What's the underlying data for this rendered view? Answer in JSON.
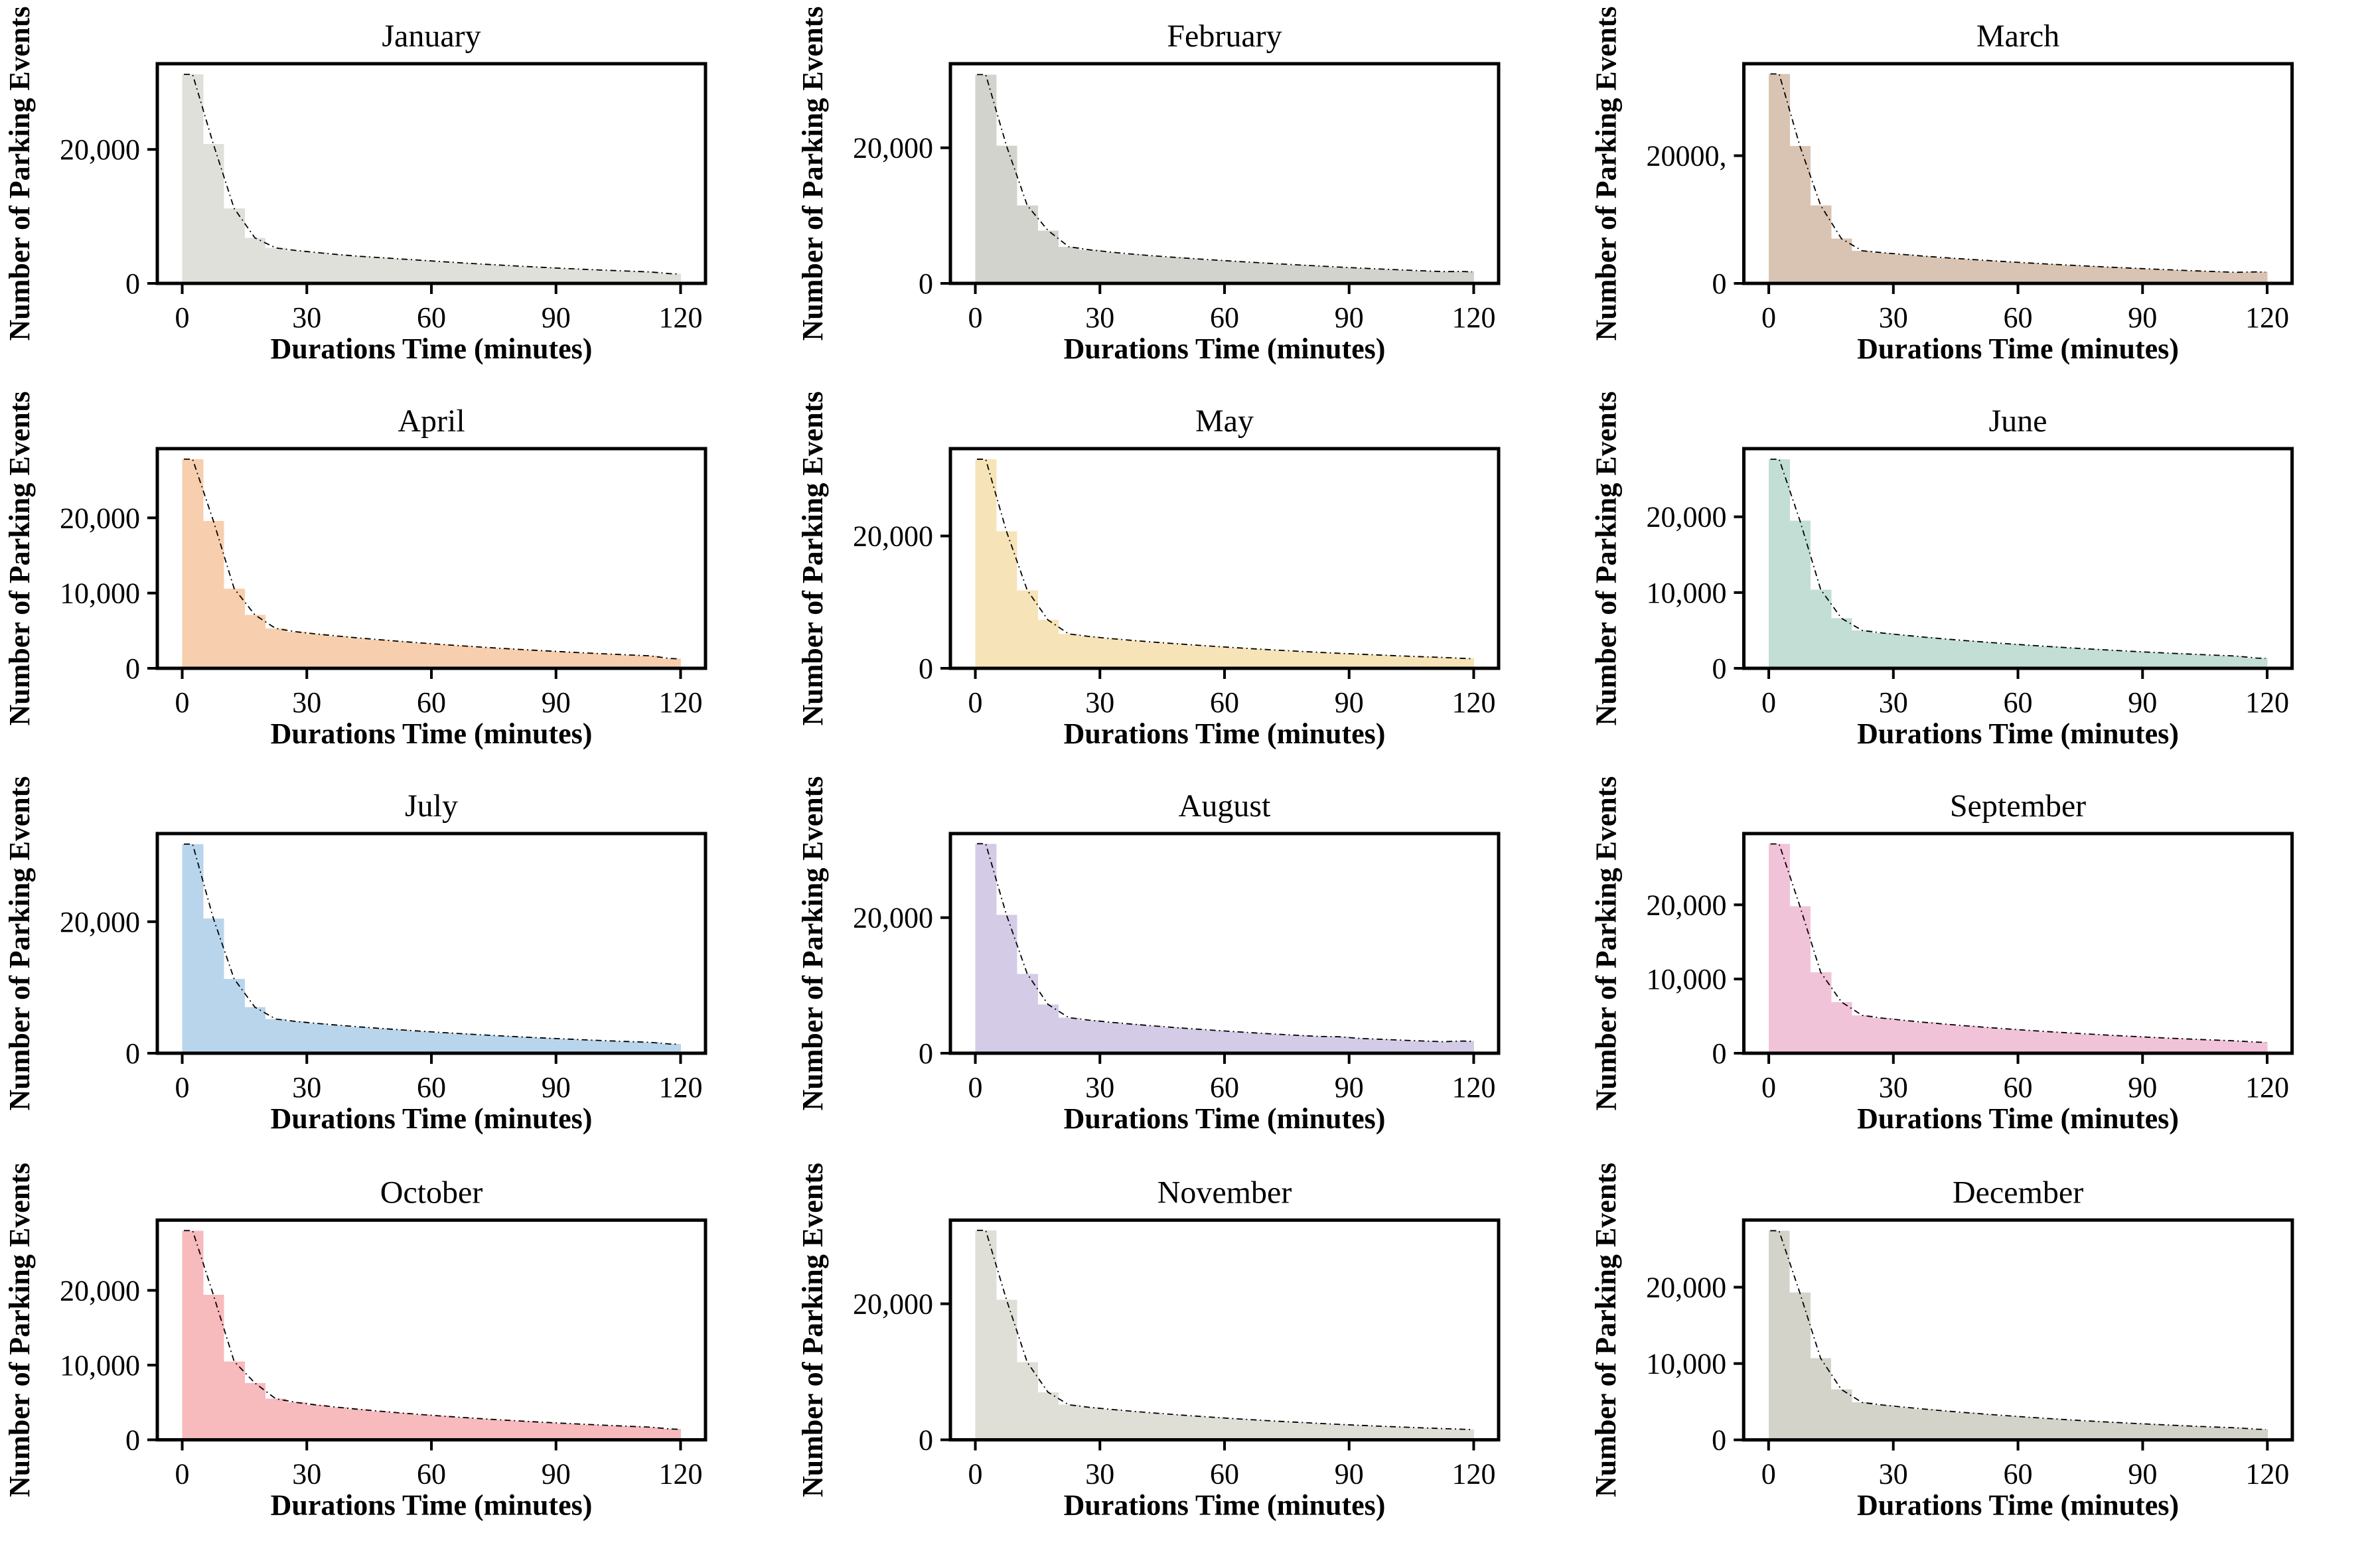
{
  "figure": {
    "ylabel": "Number of Parking Events",
    "xlabel": "Durations Time (minutes)",
    "x_ticks": [
      {
        "value": 0,
        "label": "0"
      },
      {
        "value": 30,
        "label": "30"
      },
      {
        "value": 60,
        "label": "60"
      },
      {
        "value": 90,
        "label": "90"
      },
      {
        "value": 120,
        "label": "120"
      }
    ],
    "line_color": "#000000",
    "frame_color": "#000000"
  },
  "chart_data": {
    "type": "bar",
    "subtype": "histogram-grid",
    "bin_width_minutes": 5,
    "x_range_minutes": [
      0,
      120
    ],
    "xlabel": "Durations Time (minutes)",
    "ylabel": "Number of Parking Events",
    "legend": "none",
    "grid": "off",
    "overlay": "dash-dot density curve tracing bar tops",
    "months": [
      {
        "name": "January",
        "color": "#e0e0da",
        "ymax": 32800,
        "y_ticks": [
          {
            "value": 20000,
            "label": "20,000"
          },
          {
            "value": 0,
            "label": "0"
          }
        ],
        "values": [
          31200,
          20800,
          11200,
          6800,
          5300,
          4900,
          4600,
          4300,
          4050,
          3850,
          3650,
          3450,
          3250,
          3050,
          2870,
          2700,
          2530,
          2370,
          2220,
          2080,
          1950,
          1830,
          1710,
          1450
        ]
      },
      {
        "name": "February",
        "color": "#d3d3ce",
        "ymax": 32400,
        "y_ticks": [
          {
            "value": 20000,
            "label": "20,000"
          },
          {
            "value": 0,
            "label": "0"
          }
        ],
        "values": [
          30800,
          20300,
          11500,
          7800,
          5400,
          4950,
          4620,
          4330,
          4080,
          3860,
          3650,
          3450,
          3260,
          3080,
          2900,
          2730,
          2570,
          2410,
          2260,
          2120,
          1990,
          1860,
          1740,
          1750
        ]
      },
      {
        "name": "March",
        "color": "#d9c4b3",
        "ymax": 34400,
        "y_ticks": [
          {
            "value": 20000,
            "label": "20000,"
          },
          {
            "value": 0,
            "label": "0"
          }
        ],
        "values": [
          32800,
          21500,
          12200,
          7000,
          5100,
          4800,
          4520,
          4260,
          4020,
          3800,
          3590,
          3390,
          3200,
          3020,
          2850,
          2690,
          2530,
          2380,
          2240,
          2100,
          1970,
          1850,
          1730,
          1800
        ]
      },
      {
        "name": "April",
        "color": "#f7cfae",
        "ymax": 29200,
        "y_ticks": [
          {
            "value": 20000,
            "label": "20,000"
          },
          {
            "value": 10000,
            "label": "10,000"
          },
          {
            "value": 0,
            "label": "0"
          }
        ],
        "values": [
          27800,
          19600,
          10600,
          7100,
          5300,
          4850,
          4550,
          4280,
          4030,
          3800,
          3580,
          3370,
          3170,
          2980,
          2800,
          2630,
          2470,
          2320,
          2170,
          2030,
          1900,
          1780,
          1660,
          1300
        ]
      },
      {
        "name": "May",
        "color": "#f6e4b8",
        "ymax": 33200,
        "y_ticks": [
          {
            "value": 20000,
            "label": "20,000"
          },
          {
            "value": 0,
            "label": "0"
          }
        ],
        "values": [
          31600,
          20700,
          11800,
          7300,
          5200,
          4800,
          4500,
          4230,
          3980,
          3750,
          3530,
          3320,
          3120,
          2930,
          2750,
          2580,
          2420,
          2270,
          2130,
          2000,
          1870,
          1750,
          1640,
          1500
        ]
      },
      {
        "name": "June",
        "color": "#c3ded4",
        "ymax": 29000,
        "y_ticks": [
          {
            "value": 20000,
            "label": "20,000"
          },
          {
            "value": 10000,
            "label": "10,000"
          },
          {
            "value": 0,
            "label": "0"
          }
        ],
        "values": [
          27600,
          19500,
          10400,
          6600,
          5000,
          4650,
          4370,
          4110,
          3870,
          3650,
          3440,
          3240,
          3050,
          2870,
          2700,
          2540,
          2390,
          2240,
          2100,
          1970,
          1850,
          1730,
          1620,
          1350
        ]
      },
      {
        "name": "July",
        "color": "#b9d5eb",
        "ymax": 33400,
        "y_ticks": [
          {
            "value": 20000,
            "label": "20,000"
          },
          {
            "value": 0,
            "label": "0"
          }
        ],
        "values": [
          31800,
          20500,
          11300,
          7000,
          5200,
          4820,
          4530,
          4260,
          4010,
          3780,
          3560,
          3350,
          3150,
          2960,
          2780,
          2610,
          2450,
          2300,
          2160,
          2020,
          1890,
          1770,
          1660,
          1400
        ]
      },
      {
        "name": "August",
        "color": "#d4cbe7",
        "ymax": 32400,
        "y_ticks": [
          {
            "value": 20000,
            "label": "20,000"
          },
          {
            "value": 0,
            "label": "0"
          }
        ],
        "values": [
          30900,
          20400,
          11700,
          7200,
          5250,
          4870,
          4570,
          4300,
          4050,
          3810,
          3590,
          3380,
          3180,
          2990,
          2810,
          2640,
          2480,
          2430,
          2190,
          2060,
          1930,
          1810,
          1700,
          1800
        ]
      },
      {
        "name": "September",
        "color": "#f1c3d9",
        "ymax": 29600,
        "y_ticks": [
          {
            "value": 20000,
            "label": "20,000"
          },
          {
            "value": 10000,
            "label": "10,000"
          },
          {
            "value": 0,
            "label": "0"
          }
        ],
        "values": [
          28200,
          19800,
          10900,
          6900,
          5100,
          4720,
          4430,
          4160,
          3920,
          3690,
          3480,
          3270,
          3080,
          2900,
          2730,
          2570,
          2410,
          2270,
          2130,
          2000,
          1880,
          1770,
          1660,
          1500
        ]
      },
      {
        "name": "October",
        "color": "#f7babd",
        "ymax": 29400,
        "y_ticks": [
          {
            "value": 20000,
            "label": "20,000"
          },
          {
            "value": 10000,
            "label": "10,000"
          },
          {
            "value": 0,
            "label": "0"
          }
        ],
        "values": [
          28000,
          19400,
          10500,
          7600,
          5500,
          5000,
          4650,
          4350,
          4080,
          3830,
          3600,
          3380,
          3180,
          2990,
          2810,
          2640,
          2480,
          2330,
          2190,
          2060,
          1930,
          1810,
          1700,
          1450
        ]
      },
      {
        "name": "November",
        "color": "#dfdfd7",
        "ymax": 32300,
        "y_ticks": [
          {
            "value": 20000,
            "label": "20,000"
          },
          {
            "value": 0,
            "label": "0"
          }
        ],
        "values": [
          30800,
          20600,
          11400,
          7000,
          5150,
          4770,
          4480,
          4210,
          3960,
          3730,
          3510,
          3300,
          3100,
          2920,
          2740,
          2580,
          2420,
          2270,
          2130,
          2000,
          1880,
          1760,
          1650,
          1550
        ]
      },
      {
        "name": "December",
        "color": "#d3d3ca",
        "ymax": 28800,
        "y_ticks": [
          {
            "value": 20000,
            "label": "20,000"
          },
          {
            "value": 10000,
            "label": "10,000"
          },
          {
            "value": 0,
            "label": "0"
          }
        ],
        "values": [
          27400,
          19300,
          10700,
          6600,
          4900,
          4560,
          4290,
          4030,
          3790,
          3570,
          3360,
          3160,
          2970,
          2790,
          2620,
          2460,
          2310,
          2170,
          2040,
          1910,
          1790,
          1680,
          1580,
          1400
        ]
      }
    ]
  }
}
